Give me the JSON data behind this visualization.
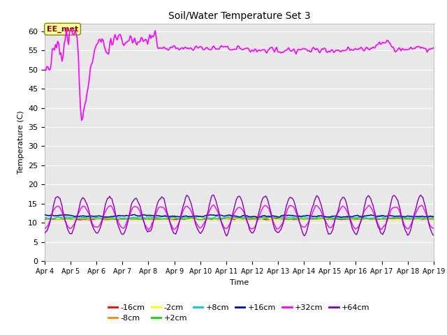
{
  "title": "Soil/Water Temperature Set 3",
  "xlabel": "Time",
  "ylabel": "Temperature (C)",
  "ylim": [
    0,
    62
  ],
  "yticks": [
    0,
    5,
    10,
    15,
    20,
    25,
    30,
    35,
    40,
    45,
    50,
    55,
    60
  ],
  "x_labels": [
    "Apr 4",
    "Apr 5",
    "Apr 6",
    "Apr 7",
    "Apr 8",
    "Apr 9",
    "Apr 10",
    "Apr 11",
    "Apr 12",
    "Apr 13",
    "Apr 14",
    "Apr 15",
    "Apr 16",
    "Apr 17",
    "Apr 18",
    "Apr 19"
  ],
  "legend_entries": [
    {
      "label": "-16cm",
      "color": "#ff0000"
    },
    {
      "label": "-8cm",
      "color": "#ff8800"
    },
    {
      "label": "-2cm",
      "color": "#ffff00"
    },
    {
      "label": "+2cm",
      "color": "#00dd00"
    },
    {
      "label": "+8cm",
      "color": "#00cccc"
    },
    {
      "label": "+16cm",
      "color": "#0000bb"
    },
    {
      "label": "+32cm",
      "color": "#ff00ff"
    },
    {
      "label": "+64cm",
      "color": "#8800bb"
    }
  ],
  "plot_bg": "#e8e8e8",
  "fig_bg": "#ffffff",
  "ee_met_box_color": "#ffff99",
  "ee_met_text_color": "#880000"
}
